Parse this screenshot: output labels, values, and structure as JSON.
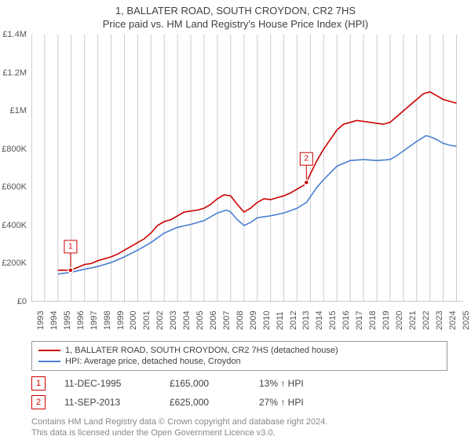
{
  "title_line1": "1, BALLATER ROAD, SOUTH CROYDON, CR2 7HS",
  "title_line2": "Price paid vs. HM Land Registry's House Price Index (HPI)",
  "chart": {
    "type": "line",
    "ylim": [
      0,
      1400000
    ],
    "ytick_step": 200000,
    "yticks": [
      {
        "v": 0,
        "label": "£0"
      },
      {
        "v": 200000,
        "label": "£200K"
      },
      {
        "v": 400000,
        "label": "£400K"
      },
      {
        "v": 600000,
        "label": "£600K"
      },
      {
        "v": 800000,
        "label": "£800K"
      },
      {
        "v": 1000000,
        "label": "£1M"
      },
      {
        "v": 1200000,
        "label": "£1.2M"
      },
      {
        "v": 1400000,
        "label": "£1.4M"
      }
    ],
    "xlim": [
      1993,
      2025.5
    ],
    "xticks": [
      1993,
      1994,
      1995,
      1996,
      1997,
      1998,
      1999,
      2000,
      2001,
      2002,
      2003,
      2004,
      2005,
      2006,
      2007,
      2008,
      2009,
      2010,
      2011,
      2012,
      2013,
      2014,
      2015,
      2016,
      2017,
      2018,
      2019,
      2020,
      2021,
      2022,
      2023,
      2024,
      2025
    ],
    "grid_color": "#cccccc",
    "axis_color": "#999999",
    "background_color": "#ffffff",
    "series": [
      {
        "name": "1, BALLATER ROAD, SOUTH CROYDON, CR2 7HS (detached house)",
        "color": "#cc0000",
        "data": [
          [
            1995.0,
            165000
          ],
          [
            1995.95,
            165000
          ],
          [
            1996.5,
            180000
          ],
          [
            1997.0,
            195000
          ],
          [
            1997.5,
            200000
          ],
          [
            1998.0,
            215000
          ],
          [
            1998.5,
            225000
          ],
          [
            1999.0,
            235000
          ],
          [
            1999.5,
            250000
          ],
          [
            2000.0,
            270000
          ],
          [
            2000.5,
            290000
          ],
          [
            2001.0,
            310000
          ],
          [
            2001.5,
            330000
          ],
          [
            2002.0,
            360000
          ],
          [
            2002.5,
            400000
          ],
          [
            2003.0,
            420000
          ],
          [
            2003.5,
            430000
          ],
          [
            2004.0,
            450000
          ],
          [
            2004.5,
            470000
          ],
          [
            2005.0,
            475000
          ],
          [
            2005.5,
            480000
          ],
          [
            2006.0,
            490000
          ],
          [
            2006.5,
            510000
          ],
          [
            2007.0,
            540000
          ],
          [
            2007.5,
            560000
          ],
          [
            2008.0,
            555000
          ],
          [
            2008.5,
            510000
          ],
          [
            2009.0,
            470000
          ],
          [
            2009.5,
            490000
          ],
          [
            2010.0,
            520000
          ],
          [
            2010.5,
            540000
          ],
          [
            2011.0,
            535000
          ],
          [
            2011.5,
            545000
          ],
          [
            2012.0,
            555000
          ],
          [
            2012.5,
            570000
          ],
          [
            2013.0,
            590000
          ],
          [
            2013.5,
            610000
          ],
          [
            2013.7,
            625000
          ],
          [
            2014.0,
            670000
          ],
          [
            2014.5,
            740000
          ],
          [
            2015.0,
            800000
          ],
          [
            2015.5,
            850000
          ],
          [
            2016.0,
            900000
          ],
          [
            2016.5,
            930000
          ],
          [
            2017.0,
            940000
          ],
          [
            2017.5,
            950000
          ],
          [
            2018.0,
            945000
          ],
          [
            2018.5,
            940000
          ],
          [
            2019.0,
            935000
          ],
          [
            2019.5,
            930000
          ],
          [
            2020.0,
            940000
          ],
          [
            2020.5,
            970000
          ],
          [
            2021.0,
            1000000
          ],
          [
            2021.5,
            1030000
          ],
          [
            2022.0,
            1060000
          ],
          [
            2022.5,
            1090000
          ],
          [
            2023.0,
            1100000
          ],
          [
            2023.5,
            1080000
          ],
          [
            2024.0,
            1060000
          ],
          [
            2024.5,
            1050000
          ],
          [
            2025.0,
            1040000
          ]
        ]
      },
      {
        "name": "HPI: Average price, detached house, Croydon",
        "color": "#4a7fd1",
        "data": [
          [
            1995.0,
            145000
          ],
          [
            1996.0,
            155000
          ],
          [
            1997.0,
            170000
          ],
          [
            1998.0,
            185000
          ],
          [
            1999.0,
            205000
          ],
          [
            2000.0,
            235000
          ],
          [
            2001.0,
            270000
          ],
          [
            2002.0,
            310000
          ],
          [
            2003.0,
            360000
          ],
          [
            2004.0,
            390000
          ],
          [
            2005.0,
            405000
          ],
          [
            2006.0,
            425000
          ],
          [
            2007.0,
            465000
          ],
          [
            2007.7,
            480000
          ],
          [
            2008.0,
            470000
          ],
          [
            2008.5,
            430000
          ],
          [
            2009.0,
            400000
          ],
          [
            2009.5,
            415000
          ],
          [
            2010.0,
            440000
          ],
          [
            2011.0,
            450000
          ],
          [
            2012.0,
            465000
          ],
          [
            2013.0,
            490000
          ],
          [
            2013.7,
            520000
          ],
          [
            2014.0,
            550000
          ],
          [
            2014.5,
            600000
          ],
          [
            2015.0,
            640000
          ],
          [
            2016.0,
            710000
          ],
          [
            2017.0,
            740000
          ],
          [
            2018.0,
            745000
          ],
          [
            2019.0,
            740000
          ],
          [
            2020.0,
            745000
          ],
          [
            2020.5,
            765000
          ],
          [
            2021.0,
            790000
          ],
          [
            2022.0,
            840000
          ],
          [
            2022.7,
            870000
          ],
          [
            2023.0,
            865000
          ],
          [
            2023.5,
            850000
          ],
          [
            2024.0,
            830000
          ],
          [
            2024.5,
            820000
          ],
          [
            2025.0,
            815000
          ]
        ]
      }
    ],
    "markers": [
      {
        "n": "1",
        "x": 1995.95,
        "y": 165000,
        "color": "#cc0000"
      },
      {
        "n": "2",
        "x": 2013.7,
        "y": 625000,
        "color": "#cc0000"
      }
    ]
  },
  "legend": {
    "items": [
      {
        "label": "1, BALLATER ROAD, SOUTH CROYDON, CR2 7HS (detached house)",
        "color": "#cc0000"
      },
      {
        "label": "HPI: Average price, detached house, Croydon",
        "color": "#4a7fd1"
      }
    ]
  },
  "transactions": [
    {
      "n": "1",
      "date": "11-DEC-1995",
      "price": "£165,000",
      "delta": "13% ↑ HPI",
      "box_color": "#cc0000"
    },
    {
      "n": "2",
      "date": "11-SEP-2013",
      "price": "£625,000",
      "delta": "27% ↑ HPI",
      "box_color": "#cc0000"
    }
  ],
  "footer_line1": "Contains HM Land Registry data © Crown copyright and database right 2024.",
  "footer_line2": "This data is licensed under the Open Government Licence v3.0."
}
